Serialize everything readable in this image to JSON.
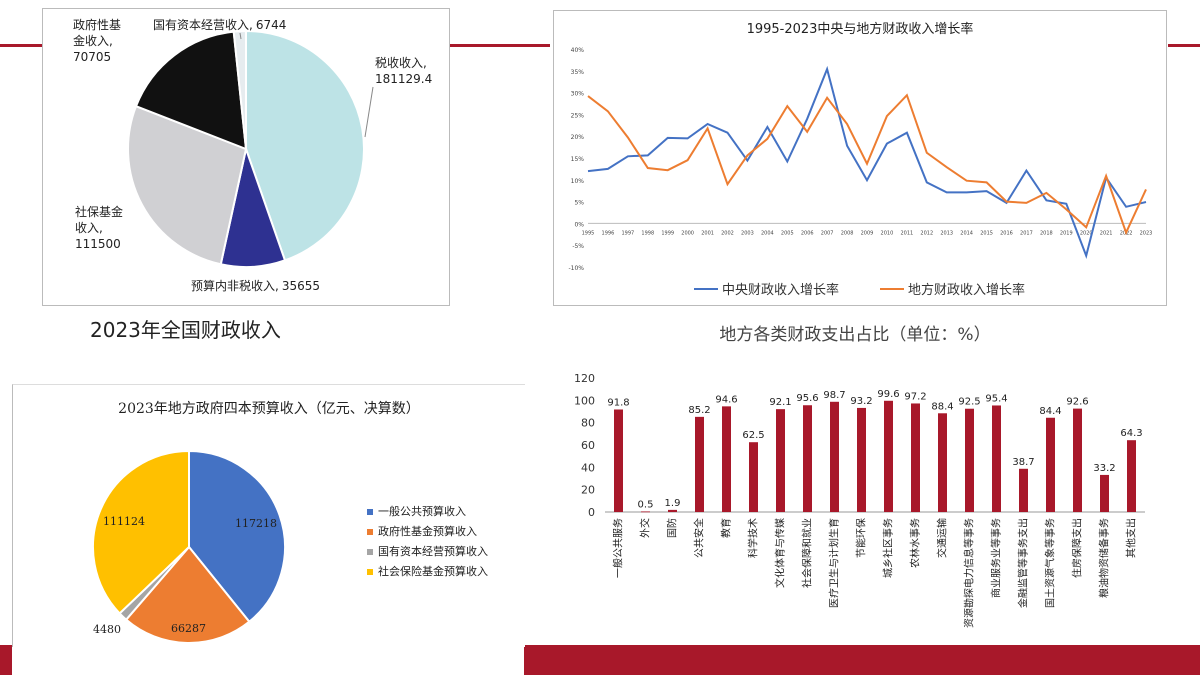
{
  "colors": {
    "accent_red": "#a8182a",
    "pie_tax": "#bde3e6",
    "pie_nontax": "#2e3191",
    "pie_social": "#d0d0d3",
    "pie_fund": "#111111",
    "pie_state": "#e6ecef",
    "line_central": "#4472c4",
    "line_local": "#ed7d31",
    "bar": "#a8182a",
    "pie4_general": "#4472c4",
    "pie4_fund": "#ed7d31",
    "pie4_state": "#a5a5a5",
    "pie4_social": "#ffc000"
  },
  "captions": {
    "pie1": "2023年全国财政收入"
  },
  "chart_data": [
    {
      "type": "pie",
      "slices": [
        {
          "label": "税收收入,",
          "value_text": "181129.4",
          "value": 181129.4
        },
        {
          "label": "预算内非税收入,",
          "value_text": "35655",
          "value": 35655
        },
        {
          "label": "社保基金",
          "label2": "收入,",
          "value_text": "111500",
          "value": 111500
        },
        {
          "label": "政府性基",
          "label2": "金收入,",
          "value_text": "70705",
          "value": 70705
        },
        {
          "label": "国有资本经营收入,",
          "value_text": "6744",
          "value": 6744
        }
      ]
    },
    {
      "type": "line",
      "title": "1995-2023中央与地方财政收入增长率",
      "x": [
        "1995",
        "1996",
        "1997",
        "1998",
        "1999",
        "2000",
        "2001",
        "2002",
        "2003",
        "2004",
        "2005",
        "2006",
        "2007",
        "2008",
        "2009",
        "2010",
        "2011",
        "2012",
        "2013",
        "2014",
        "2015",
        "2016",
        "2017",
        "2018",
        "2019",
        "2020",
        "2021",
        "2022",
        "2023"
      ],
      "ylim": [
        -10,
        40
      ],
      "yticks": [
        "40%",
        "35%",
        "30%",
        "25%",
        "20%",
        "15%",
        "10%",
        "5%",
        "0%",
        "-5%",
        "-10%"
      ],
      "legend_position": "bottom",
      "series": [
        {
          "name": "中央财政收入增长率",
          "values": [
            12.0,
            12.5,
            15.4,
            15.6,
            19.6,
            19.5,
            22.8,
            20.8,
            14.4,
            22.1,
            14.2,
            24.0,
            35.4,
            17.8,
            9.9,
            18.3,
            20.8,
            9.4,
            7.1,
            7.1,
            7.4,
            4.7,
            12.1,
            5.3,
            4.5,
            -7.4,
            10.5,
            3.8,
            4.9
          ]
        },
        {
          "name": "地方财政收入增长率",
          "values": [
            29.2,
            25.7,
            19.7,
            12.7,
            12.2,
            14.5,
            21.8,
            9.0,
            15.6,
            19.4,
            26.9,
            21.0,
            28.8,
            22.8,
            13.7,
            24.6,
            29.4,
            16.2,
            12.9,
            9.8,
            9.4,
            5.0,
            4.7,
            7.0,
            3.2,
            -0.9,
            10.9,
            -2.1,
            7.8
          ]
        }
      ]
    },
    {
      "type": "pie",
      "title": "2023年地方政府四本预算收入（亿元、决算数）",
      "legend_position": "right",
      "slices": [
        {
          "label": "一般公共预算收入",
          "value": 117218,
          "value_text": "117218"
        },
        {
          "label": "政府性基金预算收入",
          "value": 66287,
          "value_text": "66287"
        },
        {
          "label": "国有资本经营预算收入",
          "value": 4480,
          "value_text": "4480"
        },
        {
          "label": "社会保险基金预算收入",
          "value": 111124,
          "value_text": "111124"
        }
      ]
    },
    {
      "type": "bar",
      "title": "地方各类财政支出占比（单位：%）",
      "ylim": [
        0,
        120
      ],
      "yticks": [
        "0",
        "20",
        "40",
        "60",
        "80",
        "100",
        "120"
      ],
      "categories": [
        "一般公共服务",
        "外交",
        "国防",
        "公共安全",
        "教育",
        "科学技术",
        "文化体育与传媒",
        "社会保障和就业",
        "医疗卫生与计划生育",
        "节能环保",
        "城乡社区事务",
        "农林水事务",
        "交通运输",
        "资源勘探电力信息等事务",
        "商业服务业等事务",
        "金融监管等事务支出",
        "国土资源气象等事务",
        "住房保障支出",
        "粮油物资储备事务",
        "其他支出"
      ],
      "values": [
        91.8,
        0.5,
        1.9,
        85.2,
        94.6,
        62.5,
        92.1,
        95.6,
        98.7,
        93.2,
        99.6,
        97.2,
        88.4,
        92.5,
        95.4,
        38.7,
        84.4,
        92.6,
        33.2,
        64.3
      ],
      "value_labels": [
        "91.8",
        "0.5",
        "1.9",
        "85.2",
        "94.6",
        "62.5",
        "92.1",
        "95.6",
        "98.7",
        "93.2",
        "99.6",
        "97.2",
        "88.4",
        "92.5",
        "95.4",
        "38.7",
        "84.4",
        "92.6",
        "33.2",
        "64.3"
      ]
    }
  ]
}
